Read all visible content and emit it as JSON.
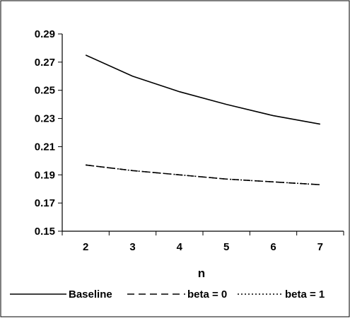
{
  "chart_data": {
    "type": "line",
    "title": "",
    "xlabel": "n",
    "ylabel": "",
    "x": [
      2,
      3,
      4,
      5,
      6,
      7
    ],
    "xlim": [
      1.5,
      7.5
    ],
    "ylim": [
      0.15,
      0.29
    ],
    "yticks": [
      "0.15",
      "0.17",
      "0.19",
      "0.21",
      "0.23",
      "0.25",
      "0.27",
      "0.29"
    ],
    "xticks": [
      "2",
      "3",
      "4",
      "5",
      "6",
      "7"
    ],
    "grid": false,
    "legend_position": "bottom",
    "series": [
      {
        "name": "Baseline",
        "style": "solid",
        "color": "#000000",
        "values": [
          0.275,
          0.26,
          0.249,
          0.24,
          0.232,
          0.226
        ]
      },
      {
        "name": "beta = 0",
        "style": "dashed",
        "color": "#000000",
        "values": [
          0.197,
          0.193,
          0.19,
          0.187,
          0.185,
          0.183
        ]
      },
      {
        "name": "beta = 1",
        "style": "dotted",
        "color": "#000000",
        "values": [
          0.197,
          0.193,
          0.19,
          0.187,
          0.185,
          0.183
        ]
      }
    ]
  }
}
